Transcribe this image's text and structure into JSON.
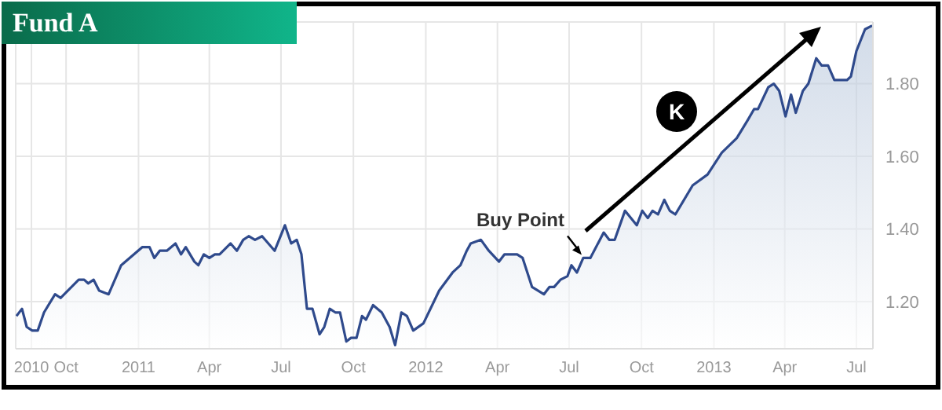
{
  "chart_data": {
    "type": "area",
    "title": "Fund A",
    "color": "#2f4a8c",
    "grid": true,
    "xlim": [
      "2010-07-29",
      "2013-07-22"
    ],
    "xticks": [
      {
        "value": "2010-08-18",
        "label": "2010"
      },
      {
        "value": "2010-10-01",
        "label": "Oct"
      },
      {
        "value": "2011-01-01",
        "label": "2011"
      },
      {
        "value": "2011-04-01",
        "label": "Apr"
      },
      {
        "value": "2011-07-01",
        "label": "Jul"
      },
      {
        "value": "2011-10-01",
        "label": "Oct"
      },
      {
        "value": "2012-01-01",
        "label": "2012"
      },
      {
        "value": "2012-04-01",
        "label": "Apr"
      },
      {
        "value": "2012-07-01",
        "label": "Jul"
      },
      {
        "value": "2012-10-01",
        "label": "Oct"
      },
      {
        "value": "2013-01-01",
        "label": "2013"
      },
      {
        "value": "2013-04-01",
        "label": "Apr"
      },
      {
        "value": "2013-07-01",
        "label": "Jul"
      }
    ],
    "ylim": [
      1.07,
      1.97
    ],
    "yticks": [
      {
        "value": 1.2,
        "label": "1.20"
      },
      {
        "value": 1.4,
        "label": "1.40"
      },
      {
        "value": 1.6,
        "label": "1.60"
      },
      {
        "value": 1.8,
        "label": "1.80"
      }
    ],
    "annotations": [
      {
        "text": "Buy Point",
        "x": "2012-07-19",
        "y": 1.32
      },
      "K"
    ],
    "x": [
      "2010-07-30",
      "2010-08-06",
      "2010-08-12",
      "2010-08-19",
      "2010-08-26",
      "2010-09-03",
      "2010-09-17",
      "2010-09-24",
      "2010-10-17",
      "2010-10-24",
      "2010-10-29",
      "2010-11-05",
      "2010-11-12",
      "2010-11-24",
      "2010-12-10",
      "2011-01-06",
      "2011-01-15",
      "2011-01-21",
      "2011-01-28",
      "2011-02-06",
      "2011-02-17",
      "2011-02-24",
      "2011-03-02",
      "2011-03-13",
      "2011-03-18",
      "2011-03-25",
      "2011-04-01",
      "2011-04-08",
      "2011-04-14",
      "2011-04-28",
      "2011-05-06",
      "2011-05-14",
      "2011-05-21",
      "2011-05-29",
      "2011-06-07",
      "2011-06-23",
      "2011-07-06",
      "2011-07-14",
      "2011-07-21",
      "2011-07-27",
      "2011-08-03",
      "2011-08-10",
      "2011-08-19",
      "2011-08-25",
      "2011-09-01",
      "2011-09-08",
      "2011-09-14",
      "2011-09-22",
      "2011-09-28",
      "2011-10-05",
      "2011-10-12",
      "2011-10-17",
      "2011-10-26",
      "2011-11-06",
      "2011-11-16",
      "2011-11-23",
      "2011-12-01",
      "2011-12-08",
      "2011-12-16",
      "2011-12-29",
      "2012-01-18",
      "2012-02-04",
      "2012-02-14",
      "2012-02-22",
      "2012-02-27",
      "2012-03-11",
      "2012-03-21",
      "2012-04-03",
      "2012-04-10",
      "2012-04-26",
      "2012-05-03",
      "2012-05-15",
      "2012-05-30",
      "2012-06-06",
      "2012-06-12",
      "2012-06-20",
      "2012-06-29",
      "2012-07-04",
      "2012-07-11",
      "2012-07-19",
      "2012-07-28",
      "2012-08-14",
      "2012-08-21",
      "2012-08-28",
      "2012-09-10",
      "2012-09-25",
      "2012-10-02",
      "2012-10-09",
      "2012-10-15",
      "2012-10-22",
      "2012-10-30",
      "2012-11-06",
      "2012-11-13",
      "2012-12-05",
      "2012-12-24",
      "2013-01-11",
      "2013-01-30",
      "2013-02-13",
      "2013-02-21",
      "2013-02-26",
      "2013-03-11",
      "2013-03-18",
      "2013-03-25",
      "2013-04-02",
      "2013-04-09",
      "2013-04-15",
      "2013-04-24",
      "2013-05-01",
      "2013-05-11",
      "2013-05-18",
      "2013-05-26",
      "2013-06-03",
      "2013-06-19",
      "2013-06-24",
      "2013-07-01",
      "2013-07-12",
      "2013-07-21"
    ],
    "values": [
      1.16,
      1.18,
      1.13,
      1.12,
      1.12,
      1.17,
      1.22,
      1.21,
      1.26,
      1.26,
      1.25,
      1.26,
      1.23,
      1.22,
      1.3,
      1.35,
      1.35,
      1.32,
      1.34,
      1.34,
      1.36,
      1.33,
      1.35,
      1.31,
      1.3,
      1.33,
      1.32,
      1.33,
      1.33,
      1.36,
      1.34,
      1.37,
      1.38,
      1.37,
      1.38,
      1.34,
      1.41,
      1.36,
      1.37,
      1.33,
      1.18,
      1.18,
      1.11,
      1.13,
      1.18,
      1.17,
      1.17,
      1.09,
      1.1,
      1.1,
      1.16,
      1.15,
      1.19,
      1.17,
      1.13,
      1.08,
      1.17,
      1.16,
      1.12,
      1.14,
      1.23,
      1.28,
      1.3,
      1.34,
      1.36,
      1.37,
      1.34,
      1.31,
      1.33,
      1.33,
      1.32,
      1.24,
      1.22,
      1.24,
      1.24,
      1.26,
      1.27,
      1.3,
      1.28,
      1.32,
      1.32,
      1.39,
      1.37,
      1.37,
      1.45,
      1.41,
      1.45,
      1.43,
      1.45,
      1.44,
      1.48,
      1.45,
      1.44,
      1.52,
      1.55,
      1.61,
      1.65,
      1.7,
      1.73,
      1.73,
      1.79,
      1.8,
      1.78,
      1.71,
      1.77,
      1.72,
      1.78,
      1.8,
      1.87,
      1.85,
      1.85,
      1.81,
      1.81,
      1.82,
      1.89,
      1.95,
      1.96
    ]
  }
}
